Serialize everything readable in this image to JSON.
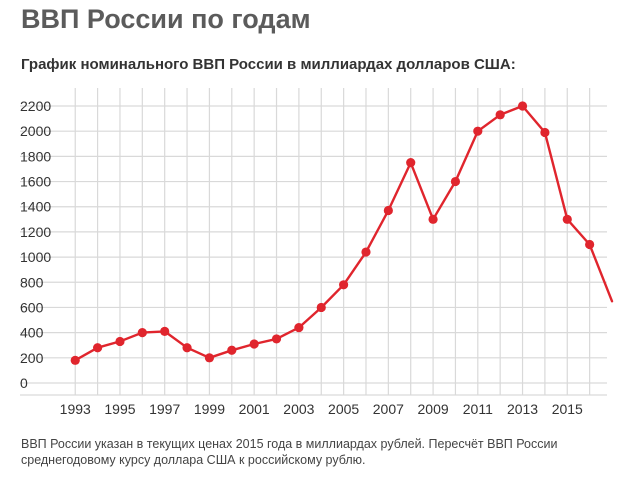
{
  "header": {
    "title": "ВВП России по годам",
    "subtitle": "График номинального ВВП России в миллиардах долларов США:"
  },
  "footnote": {
    "line1": "ВВП России указан в текущих ценах 2015 года в миллиардах рублей. Пересчёт ВВП России",
    "line2": "среднегодовому курсу доллара США к российскому рублю."
  },
  "chart_data": {
    "type": "line",
    "title": "График номинального ВВП России в миллиардах долларов США:",
    "xlabel": "",
    "ylabel": "",
    "xlim": [
      1992.9,
      2017
    ],
    "ylim": [
      0,
      2200
    ],
    "grid": true,
    "color": "#e0252d",
    "x_ticks": [
      1993,
      1995,
      1997,
      1999,
      2001,
      2003,
      2005,
      2007,
      2009,
      2011,
      2013,
      2015
    ],
    "y_ticks": [
      0,
      200,
      400,
      600,
      800,
      1000,
      1200,
      1400,
      1600,
      1800,
      2000,
      2200
    ],
    "series": [
      {
        "x": [
          1993,
          1994,
          1995,
          1996,
          1997,
          1998,
          1999,
          2000,
          2001,
          2002,
          2003,
          2004,
          2005,
          2006,
          2007,
          2008,
          2009,
          2010,
          2011,
          2012,
          2013,
          2014,
          2015,
          2016,
          2017
        ],
        "values": [
          180,
          280,
          330,
          400,
          410,
          280,
          200,
          260,
          310,
          350,
          440,
          600,
          780,
          1040,
          1370,
          1750,
          1300,
          1600,
          2000,
          2130,
          2200,
          1990,
          1300,
          1100,
          650
        ]
      }
    ]
  }
}
